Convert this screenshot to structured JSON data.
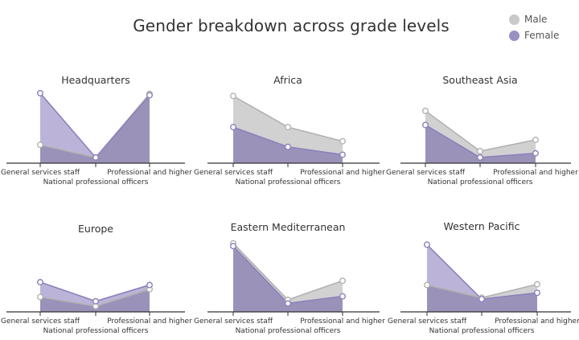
{
  "title": "Gender breakdown across grade levels",
  "legend": [
    {
      "name": "Male",
      "color": "#c9c9c9"
    },
    {
      "name": "Female",
      "color": "#9b90c4"
    }
  ],
  "colors": {
    "male_fill": "#c9c9c9",
    "male_stroke": "#b2b2b2",
    "female_fill": "#a59bcb",
    "female_stroke": "#8d80bd",
    "overlap_fill": "#9b92b9",
    "axis": "#333333"
  },
  "chart_data": [
    {
      "type": "area",
      "title": "Headquarters",
      "categories": [
        "General services staff",
        "National professional officers",
        "Professional and higher"
      ],
      "ylim": [
        0,
        100
      ],
      "series": [
        {
          "name": "Male",
          "values": [
            26,
            8,
            98
          ]
        },
        {
          "name": "Female",
          "values": [
            99,
            8,
            96
          ]
        }
      ]
    },
    {
      "type": "area",
      "title": "Africa",
      "categories": [
        "General services staff",
        "National professional officers",
        "Professional and higher"
      ],
      "ylim": [
        0,
        100
      ],
      "series": [
        {
          "name": "Male",
          "values": [
            95,
            51,
            31
          ]
        },
        {
          "name": "Female",
          "values": [
            51,
            23,
            12
          ]
        }
      ]
    },
    {
      "type": "area",
      "title": "Southeast Asia",
      "categories": [
        "General services staff",
        "National professional officers",
        "Professional and higher"
      ],
      "ylim": [
        0,
        100
      ],
      "series": [
        {
          "name": "Male",
          "values": [
            74,
            17,
            33
          ]
        },
        {
          "name": "Female",
          "values": [
            54,
            8,
            14
          ]
        }
      ]
    },
    {
      "type": "area",
      "title": "Europe",
      "categories": [
        "General services staff",
        "National professional officers",
        "Professional and higher"
      ],
      "ylim": [
        0,
        100
      ],
      "series": [
        {
          "name": "Male",
          "values": [
            21,
            8,
            32
          ]
        },
        {
          "name": "Female",
          "values": [
            42,
            15,
            38
          ]
        }
      ]
    },
    {
      "type": "area",
      "title": "Eastern Mediterranean",
      "categories": [
        "General services staff",
        "National professional officers",
        "Professional and higher"
      ],
      "ylim": [
        0,
        100
      ],
      "series": [
        {
          "name": "Male",
          "values": [
            97,
            17,
            44
          ]
        },
        {
          "name": "Female",
          "values": [
            93,
            12,
            22
          ]
        }
      ]
    },
    {
      "type": "area",
      "title": "Western Pacific",
      "categories": [
        "General services staff",
        "National professional officers",
        "Professional and higher"
      ],
      "ylim": [
        0,
        100
      ],
      "series": [
        {
          "name": "Male",
          "values": [
            38,
            20,
            39
          ]
        },
        {
          "name": "Female",
          "values": [
            95,
            18,
            27
          ]
        }
      ]
    }
  ]
}
